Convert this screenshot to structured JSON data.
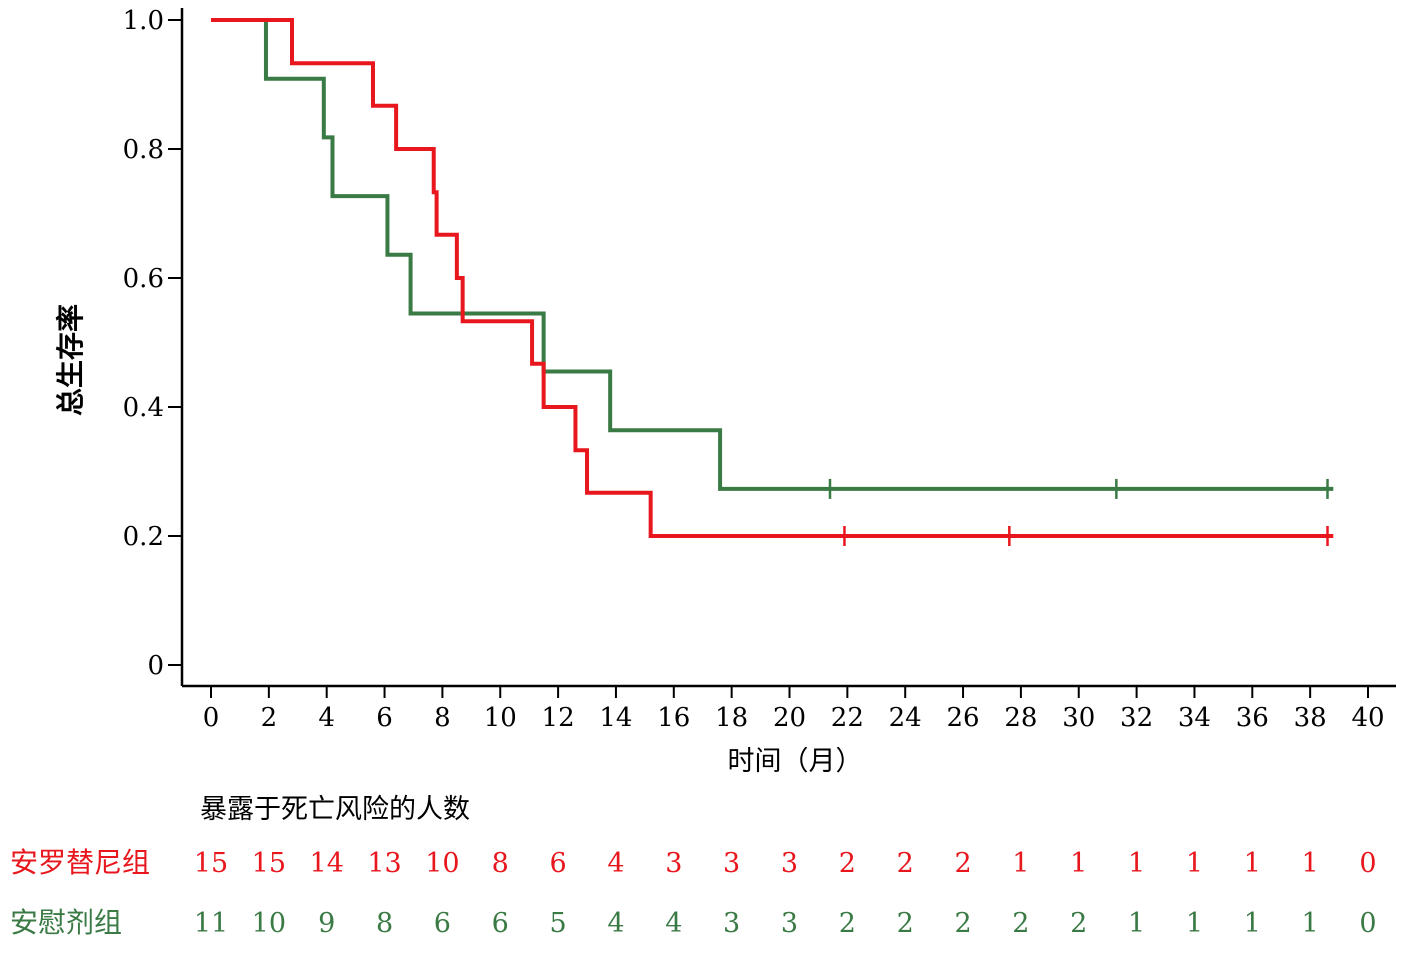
{
  "chart_data": {
    "type": "line",
    "subtype": "kaplan-meier",
    "title": "",
    "xlabel": "时间（月）",
    "ylabel": "总生存率",
    "xlim": [
      0,
      40
    ],
    "ylim": [
      0,
      1.0
    ],
    "xticks": [
      "0",
      "2",
      "4",
      "6",
      "8",
      "10",
      "12",
      "14",
      "16",
      "18",
      "20",
      "22",
      "24",
      "26",
      "28",
      "30",
      "32",
      "34",
      "36",
      "38",
      "40"
    ],
    "yticks": [
      "0",
      "0.2",
      "0.4",
      "0.6",
      "0.8",
      "1.0"
    ],
    "grid": false,
    "series": [
      {
        "name": "安罗替尼组",
        "color": "#e8161d",
        "steps": [
          [
            0,
            1.0
          ],
          [
            2.8,
            0.933
          ],
          [
            5.6,
            0.867
          ],
          [
            6.4,
            0.8
          ],
          [
            7.7,
            0.733
          ],
          [
            7.8,
            0.667
          ],
          [
            8.5,
            0.6
          ],
          [
            8.7,
            0.533
          ],
          [
            11.1,
            0.467
          ],
          [
            11.5,
            0.4
          ],
          [
            12.6,
            0.333
          ],
          [
            13.0,
            0.267
          ],
          [
            15.2,
            0.2
          ],
          [
            38.8,
            0.2
          ]
        ],
        "censored": [
          [
            21.9,
            0.2
          ],
          [
            27.6,
            0.2
          ],
          [
            38.6,
            0.2
          ]
        ]
      },
      {
        "name": "安慰剂组",
        "color": "#3a7a45",
        "steps": [
          [
            0,
            1.0
          ],
          [
            1.9,
            0.909
          ],
          [
            3.9,
            0.818
          ],
          [
            4.2,
            0.727
          ],
          [
            6.1,
            0.636
          ],
          [
            6.9,
            0.545
          ],
          [
            11.5,
            0.455
          ],
          [
            13.8,
            0.364
          ],
          [
            17.6,
            0.273
          ],
          [
            38.8,
            0.273
          ]
        ],
        "censored": [
          [
            21.4,
            0.273
          ],
          [
            31.3,
            0.273
          ],
          [
            38.6,
            0.273
          ]
        ]
      }
    ]
  },
  "risk_table": {
    "title": "暴露于死亡风险的人数",
    "groups": [
      {
        "label": "安罗替尼组",
        "color": "#e8161d",
        "values": [
          "15",
          "15",
          "14",
          "13",
          "10",
          "8",
          "6",
          "4",
          "3",
          "3",
          "3",
          "2",
          "2",
          "2",
          "1",
          "1",
          "1",
          "1",
          "1",
          "1",
          "0"
        ]
      },
      {
        "label": "安慰剂组",
        "color": "#3a7a45",
        "values": [
          "11",
          "10",
          "9",
          "8",
          "6",
          "6",
          "5",
          "4",
          "4",
          "3",
          "3",
          "2",
          "2",
          "2",
          "2",
          "2",
          "1",
          "1",
          "1",
          "1",
          "0"
        ]
      }
    ]
  }
}
